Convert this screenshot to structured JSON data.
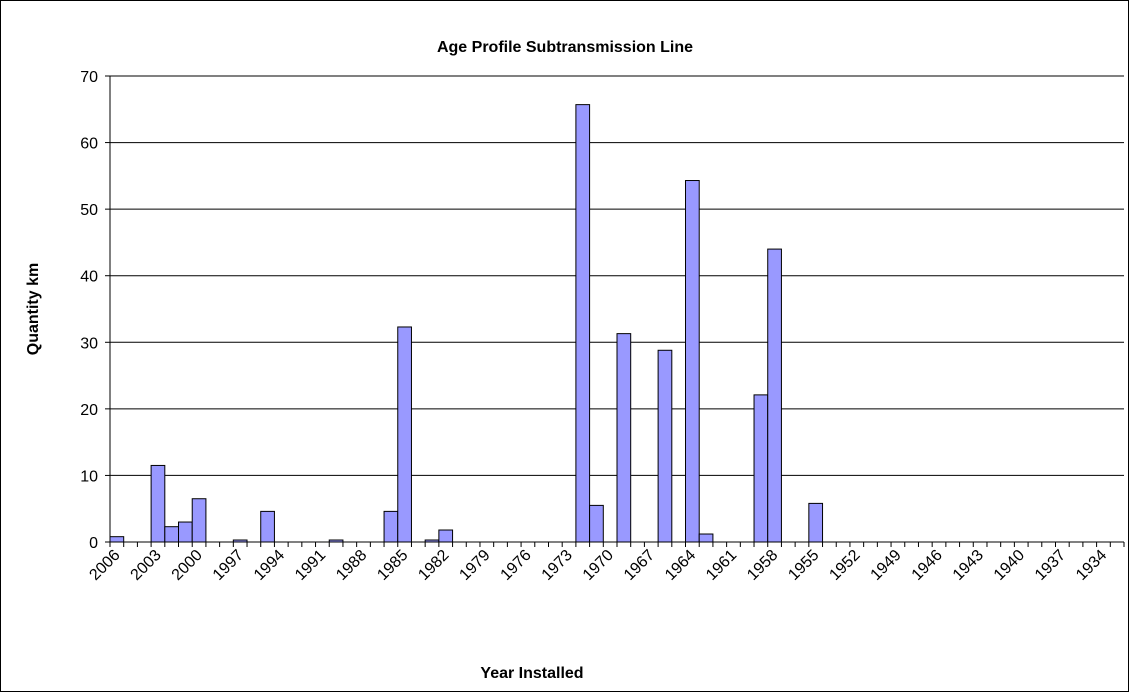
{
  "chart_data": {
    "type": "bar",
    "title": "Age Profile Subtransmission Line",
    "x_label": "Year Installed",
    "y_label": "Quantity km",
    "categories": [
      "2006",
      null,
      null,
      "2003",
      null,
      null,
      "2000",
      null,
      null,
      "1997",
      null,
      null,
      "1994",
      null,
      null,
      "1991",
      null,
      null,
      "1988",
      null,
      null,
      "1985",
      null,
      null,
      "1982",
      null,
      null,
      "1979",
      null,
      null,
      "1976",
      null,
      null,
      "1973",
      null,
      null,
      "1970",
      null,
      null,
      "1967",
      null,
      null,
      "1964",
      null,
      null,
      "1961",
      null,
      null,
      "1958",
      null,
      null,
      "1955",
      null,
      null,
      "1952",
      null,
      null,
      "1949",
      null,
      null,
      "1946",
      null,
      null,
      "1943",
      null,
      null,
      "1940",
      null,
      null,
      "1937",
      null,
      null,
      "1934",
      null
    ],
    "values": [
      0.8,
      null,
      null,
      11.5,
      2.3,
      3.0,
      6.5,
      null,
      null,
      0.3,
      null,
      4.6,
      null,
      null,
      null,
      null,
      0.3,
      null,
      null,
      null,
      4.6,
      32.3,
      null,
      0.3,
      1.8,
      null,
      null,
      null,
      null,
      null,
      null,
      null,
      null,
      null,
      65.7,
      5.5,
      null,
      31.3,
      null,
      null,
      28.8,
      null,
      54.3,
      1.2,
      null,
      null,
      null,
      22.1,
      44,
      null,
      null,
      5.8,
      null,
      null,
      null,
      null,
      null,
      null,
      null,
      null,
      null,
      null,
      null,
      null,
      null,
      null,
      null,
      null,
      null,
      null,
      null,
      null,
      null,
      null
    ],
    "color": "#9999ff",
    "ylim": [
      0,
      70
    ],
    "yticks": [
      0,
      10,
      20,
      30,
      40,
      50,
      60,
      70
    ],
    "grid": true
  }
}
